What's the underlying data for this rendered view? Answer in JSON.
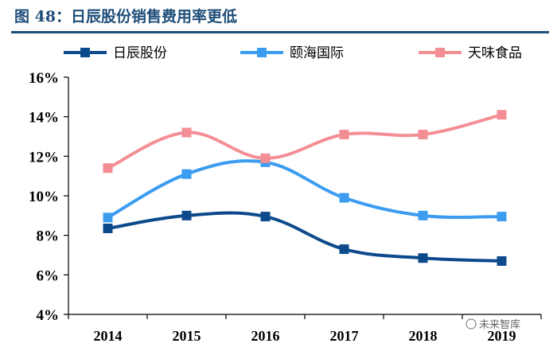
{
  "header": {
    "title": "图 48：日辰股份销售费用率更低"
  },
  "watermark": {
    "text": "未来智库"
  },
  "chart_data": {
    "type": "line",
    "title": "图 48：日辰股份销售费用率更低",
    "categories": [
      "2014",
      "2015",
      "2016",
      "2017",
      "2018",
      "2019"
    ],
    "series": [
      {
        "name": "日辰股份",
        "color": "#0d4a8c",
        "values": [
          8.35,
          9.0,
          8.95,
          7.3,
          6.85,
          6.7
        ]
      },
      {
        "name": "颐海国际",
        "color": "#3b9cf0",
        "values": [
          8.9,
          11.1,
          11.7,
          9.9,
          9.0,
          8.95
        ]
      },
      {
        "name": "天味食品",
        "color": "#f48e95",
        "values": [
          11.4,
          13.2,
          11.9,
          13.1,
          13.1,
          14.1
        ]
      }
    ],
    "ylim": [
      4,
      16
    ],
    "yticks": [
      4,
      6,
      8,
      10,
      12,
      14,
      16
    ],
    "ytick_labels": [
      "4%",
      "6%",
      "8%",
      "10%",
      "12%",
      "14%",
      "16%"
    ],
    "xlabel": "",
    "ylabel": "",
    "legend_position": "top",
    "grid": false
  }
}
